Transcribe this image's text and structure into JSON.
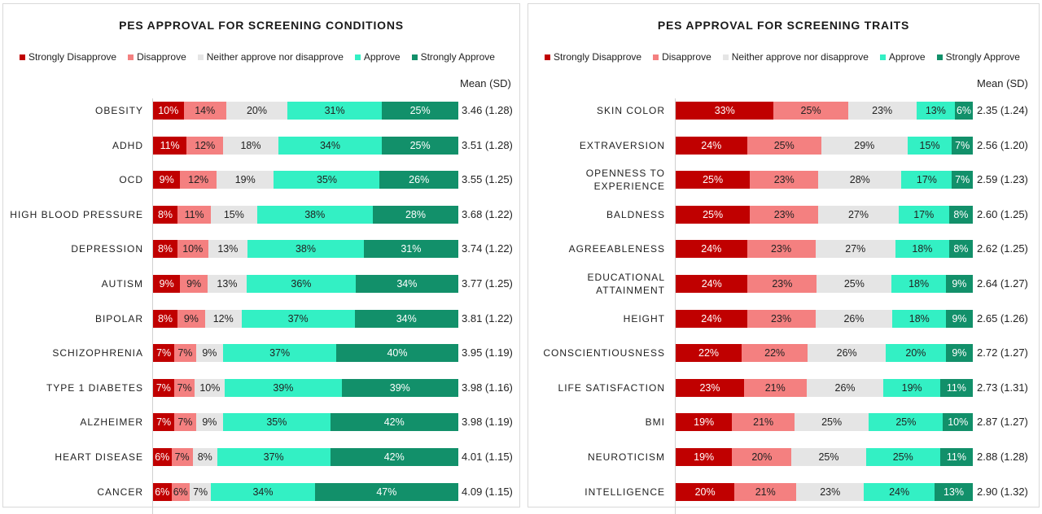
{
  "legend": [
    {
      "label": "Strongly Disapprove",
      "color": "#c00000"
    },
    {
      "label": "Disapprove",
      "color": "#f48080"
    },
    {
      "label": "Neither approve nor disapprove",
      "color": "#e5e5e5"
    },
    {
      "label": "Approve",
      "color": "#33f0c4"
    },
    {
      "label": "Strongly Approve",
      "color": "#12906a"
    }
  ],
  "chart_data": [
    {
      "type": "bar",
      "orientation": "horizontal-stacked",
      "title": "PES APPROVAL FOR SCREENING CONDITIONS",
      "mean_header": "Mean (SD)",
      "categories": [
        "OBESITY",
        "ADHD",
        "OCD",
        "HIGH BLOOD PRESSURE",
        "DEPRESSION",
        "AUTISM",
        "BIPOLAR",
        "SCHIZOPHRENIA",
        "TYPE 1 DIABETES",
        "ALZHEIMER",
        "HEART DISEASE",
        "CANCER"
      ],
      "series": [
        {
          "name": "Strongly Disapprove",
          "values": [
            10,
            11,
            9,
            8,
            8,
            9,
            8,
            7,
            7,
            7,
            6,
            6
          ]
        },
        {
          "name": "Disapprove",
          "values": [
            14,
            12,
            12,
            11,
            10,
            9,
            9,
            7,
            7,
            7,
            7,
            6
          ]
        },
        {
          "name": "Neither approve nor disapprove",
          "values": [
            20,
            18,
            19,
            15,
            13,
            13,
            12,
            9,
            10,
            9,
            8,
            7
          ]
        },
        {
          "name": "Approve",
          "values": [
            31,
            34,
            35,
            38,
            38,
            36,
            37,
            37,
            39,
            35,
            37,
            34
          ]
        },
        {
          "name": "Strongly Approve",
          "values": [
            25,
            25,
            26,
            28,
            31,
            34,
            34,
            40,
            39,
            42,
            42,
            47
          ]
        }
      ],
      "means": [
        "3.46 (1.28)",
        "3.51 (1.28)",
        "3.55 (1.25)",
        "3.68 (1.22)",
        "3.74 (1.22)",
        "3.77 (1.25)",
        "3.81 (1.22)",
        "3.95 (1.19)",
        "3.98 (1.16)",
        "3.98 (1.19)",
        "4.01 (1.15)",
        "4.09 (1.15)"
      ]
    },
    {
      "type": "bar",
      "orientation": "horizontal-stacked",
      "title": "PES APPROVAL FOR SCREENING TRAITS",
      "mean_header": "Mean (SD)",
      "categories": [
        "SKIN COLOR",
        "EXTRAVERSION",
        "OPENNESS TO EXPERIENCE",
        "BALDNESS",
        "AGREEABLENESS",
        "EDUCATIONAL ATTAINMENT",
        "HEIGHT",
        "CONSCIENTIOUSNESS",
        "LIFE SATISFACTION",
        "BMI",
        "NEUROTICISM",
        "INTELLIGENCE"
      ],
      "series": [
        {
          "name": "Strongly Disapprove",
          "values": [
            33,
            24,
            25,
            25,
            24,
            24,
            24,
            22,
            23,
            19,
            19,
            20
          ]
        },
        {
          "name": "Disapprove",
          "values": [
            25,
            25,
            23,
            23,
            23,
            23,
            23,
            22,
            21,
            21,
            20,
            21
          ]
        },
        {
          "name": "Neither approve nor disapprove",
          "values": [
            23,
            29,
            28,
            27,
            27,
            25,
            26,
            26,
            26,
            25,
            25,
            23
          ]
        },
        {
          "name": "Approve",
          "values": [
            13,
            15,
            17,
            17,
            18,
            18,
            18,
            20,
            19,
            25,
            25,
            24
          ]
        },
        {
          "name": "Strongly Approve",
          "values": [
            6,
            7,
            7,
            8,
            8,
            9,
            9,
            9,
            11,
            10,
            11,
            13
          ]
        }
      ],
      "means": [
        "2.35 (1.24)",
        "2.56 (1.20)",
        "2.59 (1.23)",
        "2.60 (1.25)",
        "2.62 (1.25)",
        "2.64 (1.27)",
        "2.65 (1.26)",
        "2.72 (1.27)",
        "2.73 (1.31)",
        "2.87 (1.27)",
        "2.88 (1.28)",
        "2.90 (1.32)"
      ]
    }
  ]
}
